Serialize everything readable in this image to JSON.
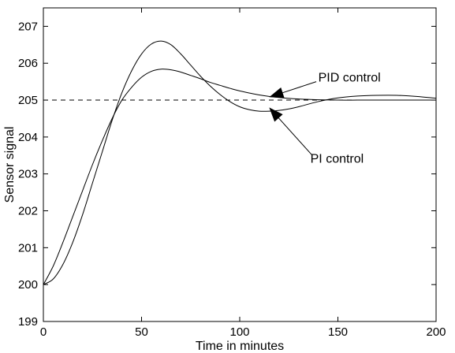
{
  "chart_data": {
    "type": "line",
    "xlabel": "Time in minutes",
    "ylabel": "Sensor signal",
    "xlim": [
      0,
      200
    ],
    "ylim": [
      199,
      207.5
    ],
    "xticks": [
      0,
      50,
      100,
      150,
      200
    ],
    "yticks": [
      199,
      200,
      201,
      202,
      203,
      204,
      205,
      206,
      207
    ],
    "grid": false,
    "legend": "none",
    "colors": {
      "line": "#000000",
      "background": "#ffffff"
    },
    "setpoint": {
      "y": 205,
      "style": "dashed"
    },
    "annotations": [
      {
        "text": "PID control",
        "label_at": [
          140,
          205.5
        ],
        "arrow_from": [
          139,
          205.5
        ],
        "arrow_to": [
          115,
          205.08
        ]
      },
      {
        "text": "PI control",
        "label_at": [
          136,
          203.3
        ],
        "arrow_from": [
          137,
          203.5
        ],
        "arrow_to": [
          115,
          204.8
        ]
      }
    ],
    "series": [
      {
        "x": [
          0,
          5,
          10,
          15,
          20,
          25,
          30,
          35,
          40,
          45,
          50,
          55,
          60,
          65,
          70,
          75,
          80,
          85,
          90,
          95,
          100,
          110,
          120,
          130,
          140,
          150,
          160,
          170,
          180,
          190,
          200
        ],
        "y": [
          200.0,
          200.5,
          201.15,
          201.85,
          202.55,
          203.25,
          203.9,
          204.5,
          205.0,
          205.35,
          205.62,
          205.78,
          205.84,
          205.82,
          205.76,
          205.67,
          205.58,
          205.48,
          205.4,
          205.32,
          205.25,
          205.14,
          205.07,
          205.03,
          205.01,
          205.0,
          205.0,
          205.0,
          205.0,
          205.0,
          205.0
        ]
      },
      {
        "x": [
          0,
          5,
          10,
          15,
          20,
          25,
          30,
          35,
          40,
          45,
          50,
          55,
          60,
          65,
          70,
          75,
          80,
          85,
          90,
          95,
          100,
          105,
          110,
          115,
          120,
          125,
          130,
          140,
          150,
          160,
          170,
          180,
          190,
          200
        ],
        "y": [
          200.0,
          200.15,
          200.55,
          201.15,
          201.9,
          202.75,
          203.6,
          204.45,
          205.2,
          205.8,
          206.25,
          206.52,
          206.6,
          206.5,
          206.25,
          205.95,
          205.65,
          205.38,
          205.15,
          204.96,
          204.82,
          204.74,
          204.7,
          204.7,
          204.72,
          204.76,
          204.82,
          204.96,
          205.06,
          205.11,
          205.13,
          205.13,
          205.1,
          205.05
        ]
      }
    ]
  }
}
